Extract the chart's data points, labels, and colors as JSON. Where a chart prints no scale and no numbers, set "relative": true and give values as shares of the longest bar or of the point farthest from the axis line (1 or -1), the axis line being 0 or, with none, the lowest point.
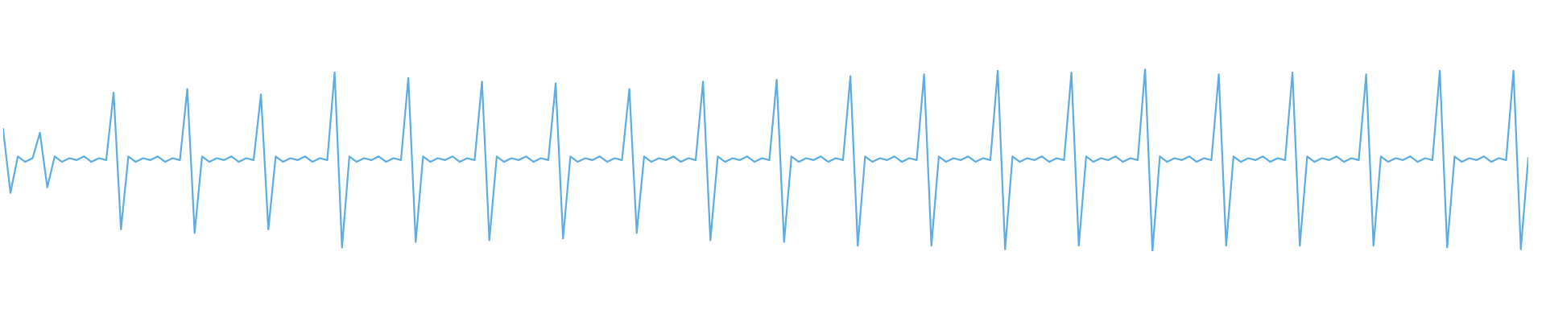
{
  "chart_data": {
    "type": "line",
    "relative": true,
    "tick_labels": false,
    "categories": [
      null,
      null,
      null,
      null,
      null,
      null,
      null,
      null,
      null,
      null,
      null,
      null,
      null,
      null,
      null,
      null,
      null,
      null,
      null,
      null,
      null,
      null,
      null,
      null,
      null,
      null,
      null,
      null,
      null,
      null,
      null,
      null,
      null,
      null,
      null,
      null,
      null,
      null,
      null,
      null,
      null,
      null,
      null,
      null,
      null,
      null,
      null,
      null,
      null,
      null,
      null,
      null,
      null,
      null,
      null,
      null,
      null,
      null,
      null,
      null,
      null,
      null,
      null,
      null,
      null,
      null,
      null,
      null,
      null,
      null,
      null,
      null,
      null,
      null,
      null,
      null,
      null,
      null,
      null,
      null,
      null,
      null,
      null,
      null,
      null,
      null,
      null,
      null,
      null,
      null,
      null,
      null,
      null,
      null,
      null,
      null,
      null,
      null,
      null,
      null,
      null,
      null,
      null,
      null,
      null,
      null,
      null,
      null,
      null,
      null,
      null,
      null,
      null,
      null,
      null,
      null,
      null,
      null,
      null,
      null,
      null,
      null,
      null,
      null,
      null,
      null,
      null,
      null,
      null,
      null,
      null,
      null,
      null,
      null,
      null,
      null,
      null,
      null,
      null,
      null,
      null,
      null,
      null,
      null,
      null,
      null,
      null,
      null,
      null,
      null,
      null,
      null,
      null,
      null,
      null,
      null,
      null,
      null,
      null,
      null,
      null,
      null,
      null,
      null,
      null,
      null,
      null,
      null,
      null,
      null,
      null,
      null,
      null,
      null,
      null,
      null,
      null,
      null,
      null,
      null,
      null,
      null,
      null,
      null,
      null,
      null,
      null,
      null,
      null,
      null,
      null,
      null,
      null,
      null,
      null,
      null,
      null,
      null,
      null,
      null,
      null,
      null,
      null,
      null,
      null,
      null,
      null,
      null
    ],
    "series": [
      {
        "color": "#5dade2",
        "values": [
          0.67,
          0.32,
          0.52,
          0.49,
          0.51,
          0.65,
          0.35,
          0.52,
          0.49,
          0.51,
          0.5,
          0.52,
          0.49,
          0.51,
          0.5,
          0.87,
          0.12,
          0.52,
          0.49,
          0.51,
          0.5,
          0.52,
          0.49,
          0.51,
          0.5,
          0.89,
          0.1,
          0.52,
          0.49,
          0.51,
          0.5,
          0.52,
          0.49,
          0.51,
          0.5,
          0.86,
          0.12,
          0.52,
          0.49,
          0.51,
          0.5,
          0.52,
          0.49,
          0.51,
          0.5,
          0.98,
          0.02,
          0.52,
          0.49,
          0.51,
          0.5,
          0.52,
          0.49,
          0.51,
          0.5,
          0.95,
          0.05,
          0.52,
          0.49,
          0.51,
          0.5,
          0.52,
          0.49,
          0.51,
          0.5,
          0.93,
          0.06,
          0.52,
          0.49,
          0.51,
          0.5,
          0.52,
          0.49,
          0.51,
          0.5,
          0.92,
          0.07,
          0.52,
          0.49,
          0.51,
          0.5,
          0.52,
          0.49,
          0.51,
          0.5,
          0.89,
          0.1,
          0.52,
          0.49,
          0.51,
          0.5,
          0.52,
          0.49,
          0.51,
          0.5,
          0.93,
          0.06,
          0.52,
          0.49,
          0.51,
          0.5,
          0.52,
          0.49,
          0.51,
          0.5,
          0.94,
          0.05,
          0.52,
          0.49,
          0.51,
          0.5,
          0.52,
          0.49,
          0.51,
          0.5,
          0.96,
          0.03,
          0.52,
          0.49,
          0.51,
          0.5,
          0.52,
          0.49,
          0.51,
          0.5,
          0.97,
          0.03,
          0.52,
          0.49,
          0.51,
          0.5,
          0.52,
          0.49,
          0.51,
          0.5,
          0.99,
          0.01,
          0.52,
          0.49,
          0.51,
          0.5,
          0.52,
          0.49,
          0.51,
          0.5,
          0.98,
          0.03,
          0.52,
          0.49,
          0.51,
          0.5,
          0.52,
          0.49,
          0.51,
          0.5,
          1.0,
          0.0,
          0.52,
          0.49,
          0.51,
          0.5,
          0.52,
          0.49,
          0.51,
          0.5,
          0.97,
          0.03,
          0.52,
          0.49,
          0.51,
          0.5,
          0.52,
          0.49,
          0.51,
          0.5,
          0.98,
          0.03,
          0.52,
          0.49,
          0.51,
          0.5,
          0.52,
          0.49,
          0.51,
          0.5,
          0.97,
          0.03,
          0.52,
          0.49,
          0.51,
          0.5,
          0.52,
          0.49,
          0.51,
          0.5,
          0.99,
          0.02,
          0.52,
          0.49,
          0.51,
          0.5,
          0.52,
          0.49,
          0.51,
          0.5,
          0.99,
          0.01,
          0.51
        ]
      }
    ]
  }
}
